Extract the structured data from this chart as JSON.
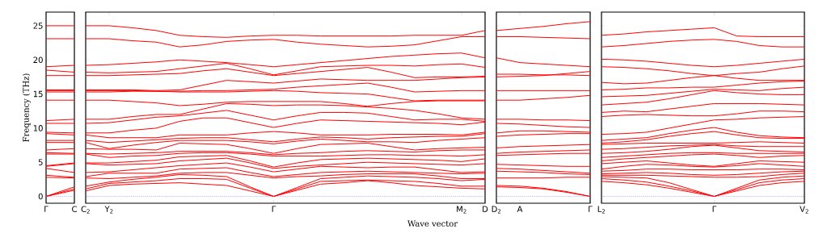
{
  "chart_data": [
    {
      "type": "line",
      "color": "#ff0000",
      "ylabel": "Frequency (THz)",
      "categories": [
        "Γ",
        "C"
      ],
      "ylim": [
        -1,
        27
      ],
      "yticks": [
        0,
        5,
        10,
        15,
        20,
        25
      ],
      "ref_lines": [
        {
          "axis": "y",
          "value": 0,
          "color": "#8080ff",
          "line_style": "dotted"
        }
      ],
      "series": [
        {
          "values": [
            0,
            0.9
          ]
        },
        {
          "values": [
            0,
            1.1
          ]
        },
        {
          "values": [
            0,
            1.4
          ]
        },
        {
          "values": [
            2.8,
            2.7
          ]
        },
        {
          "values": [
            3.1,
            2.8
          ]
        },
        {
          "values": [
            4.1,
            3.5
          ]
        },
        {
          "values": [
            4.4,
            4.8
          ]
        },
        {
          "values": [
            4.5,
            4.9
          ]
        },
        {
          "values": [
            6.2,
            6.2
          ]
        },
        {
          "values": [
            6.4,
            6.3
          ]
        },
        {
          "values": [
            6.8,
            7.0
          ]
        },
        {
          "values": [
            7.9,
            7.9
          ]
        },
        {
          "values": [
            8.2,
            8.2
          ]
        },
        {
          "values": [
            9.2,
            9.0
          ]
        },
        {
          "values": [
            9.4,
            9.3
          ]
        },
        {
          "values": [
            10.7,
            10.7
          ]
        },
        {
          "values": [
            11.1,
            11.3
          ]
        },
        {
          "values": [
            14.1,
            14.1
          ]
        },
        {
          "values": [
            15.3,
            15.3
          ]
        },
        {
          "values": [
            15.5,
            15.5
          ]
        },
        {
          "values": [
            15.6,
            15.6
          ]
        },
        {
          "values": [
            17.7,
            17.7
          ]
        },
        {
          "values": [
            18.5,
            18.2
          ]
        },
        {
          "values": [
            19.0,
            19.2
          ]
        },
        {
          "values": [
            23.1,
            23.1
          ]
        },
        {
          "values": [
            25.0,
            25.0
          ]
        }
      ]
    },
    {
      "type": "line",
      "color": "#ff0000",
      "xlabel": "Wave vector",
      "tick_labels": "x",
      "categories": [
        "C$_{2}$",
        "Y$_{2}$",
        null,
        null,
        null,
        null,
        null,
        null,
        "Γ",
        null,
        null,
        null,
        null,
        null,
        null,
        null,
        "M$_{2}$",
        "D"
      ],
      "ylim": [
        -1,
        27
      ],
      "yticks": [
        0,
        5,
        10,
        15,
        20,
        25
      ],
      "ref_lines": [
        {
          "axis": "y",
          "value": 0,
          "color": "#8080ff",
          "line_style": "dotted"
        }
      ],
      "series": [
        {
          "values": [
            0.8,
            1.6,
            1.8,
            1.9,
            2.0,
            1.8,
            1.6,
            0.8,
            0,
            0.9,
            1.8,
            2.0,
            2.3,
            2.0,
            1.6,
            1.4,
            1.2,
            1.1
          ]
        },
        {
          "values": [
            1.1,
            1.9,
            2.1,
            2.3,
            2.6,
            2.6,
            2.5,
            1.2,
            0,
            1.1,
            2.2,
            2.3,
            2.4,
            2.3,
            2.2,
            1.9,
            1.5,
            1.5
          ]
        },
        {
          "values": [
            1.5,
            2.1,
            2.5,
            2.8,
            3.2,
            3.1,
            2.9,
            1.4,
            0,
            1.3,
            2.6,
            2.8,
            3.0,
            2.9,
            2.8,
            2.6,
            2.3,
            2.5
          ]
        },
        {
          "values": [
            2.7,
            2.6,
            2.8,
            3.0,
            3.4,
            3.5,
            3.5,
            3.1,
            2.7,
            2.9,
            3.0,
            3.2,
            3.3,
            3.3,
            3.3,
            3.0,
            2.6,
            2.6
          ]
        },
        {
          "values": [
            2.9,
            3.4,
            3.4,
            3.4,
            4.0,
            4.1,
            4.2,
            3.5,
            2.9,
            3.2,
            3.5,
            3.6,
            3.7,
            3.6,
            3.5,
            3.4,
            3.3,
            3.4
          ]
        },
        {
          "values": [
            3.5,
            3.6,
            3.9,
            4.2,
            4.5,
            4.7,
            4.9,
            4.3,
            3.6,
            4.0,
            4.4,
            4.3,
            4.2,
            4.3,
            4.3,
            3.9,
            3.5,
            3.6
          ]
        },
        {
          "values": [
            4.8,
            4.6,
            4.7,
            4.8,
            5.2,
            5.4,
            5.6,
            4.9,
            4.1,
            4.4,
            4.6,
            4.8,
            5.0,
            4.9,
            4.8,
            4.7,
            4.6,
            4.8
          ]
        },
        {
          "values": [
            4.9,
            4.9,
            5.1,
            5.3,
            5.8,
            5.9,
            6.0,
            5.2,
            4.3,
            4.9,
            5.4,
            5.5,
            5.6,
            5.5,
            5.4,
            5.3,
            5.1,
            5.5
          ]
        },
        {
          "values": [
            6.2,
            5.7,
            5.9,
            6.0,
            6.3,
            6.4,
            6.4,
            6.2,
            5.9,
            5.9,
            5.9,
            6.0,
            6.1,
            6.1,
            6.0,
            6.0,
            5.9,
            6.1
          ]
        },
        {
          "values": [
            6.3,
            6.2,
            6.3,
            6.4,
            6.6,
            6.6,
            6.6,
            6.4,
            6.1,
            6.3,
            6.4,
            6.6,
            6.7,
            6.6,
            6.5,
            6.7,
            6.8,
            6.8
          ]
        },
        {
          "values": [
            7.0,
            6.9,
            6.9,
            6.8,
            7.8,
            7.7,
            7.6,
            7.0,
            6.3,
            7.0,
            7.6,
            7.7,
            7.8,
            7.3,
            6.8,
            7.0,
            7.1,
            7.2
          ]
        },
        {
          "values": [
            7.9,
            7.0,
            7.5,
            7.9,
            8.2,
            8.2,
            8.2,
            8.0,
            7.7,
            8.1,
            8.4,
            8.2,
            8.0,
            8.0,
            7.9,
            8.2,
            8.4,
            8.6
          ]
        },
        {
          "values": [
            8.2,
            7.9,
            8.1,
            8.3,
            8.5,
            8.6,
            8.6,
            8.3,
            8.0,
            8.4,
            8.7,
            8.6,
            8.4,
            8.6,
            8.7,
            8.8,
            8.8,
            9.2
          ]
        },
        {
          "values": [
            9.0,
            8.6,
            8.6,
            8.6,
            9.0,
            9.0,
            9.0,
            9.3,
            9.5,
            9.3,
            9.0,
            9.0,
            9.0,
            9.1,
            9.1,
            9.1,
            9.0,
            9.4
          ]
        },
        {
          "values": [
            9.3,
            9.3,
            9.7,
            10.0,
            11.0,
            11.5,
            11.5,
            10.8,
            10.1,
            10.7,
            11.2,
            11.1,
            11.0,
            10.9,
            10.8,
            10.7,
            10.5,
            10.9
          ]
        },
        {
          "values": [
            10.7,
            10.8,
            11.2,
            11.6,
            11.8,
            12.2,
            12.6,
            11.9,
            11.2,
            11.8,
            12.3,
            12.3,
            12.2,
            11.7,
            11.2,
            11.3,
            11.3,
            11.0
          ]
        },
        {
          "values": [
            11.3,
            11.3,
            11.7,
            12.0,
            12.0,
            12.8,
            13.6,
            13.5,
            13.3,
            13.4,
            13.4,
            13.3,
            13.1,
            12.9,
            12.6,
            12.1,
            11.5,
            11.3
          ]
        },
        {
          "values": [
            14.1,
            14.1,
            13.9,
            13.7,
            13.3,
            13.5,
            13.8,
            13.9,
            13.9,
            13.9,
            13.9,
            13.6,
            13.2,
            13.6,
            13.9,
            14.0,
            14.0,
            14.0
          ]
        },
        {
          "values": [
            15.3,
            15.3,
            15.4,
            15.4,
            15.3,
            15.3,
            15.3,
            15.4,
            15.5,
            15.4,
            15.2,
            15.1,
            15.0,
            14.5,
            14.0,
            14.1,
            14.1,
            14.1
          ]
        },
        {
          "values": [
            15.5,
            15.5,
            15.5,
            15.4,
            15.4,
            15.5,
            15.5,
            15.6,
            15.7,
            16.0,
            16.2,
            16.4,
            16.6,
            16.0,
            15.3,
            15.4,
            15.5,
            15.5
          ]
        },
        {
          "values": [
            15.6,
            15.6,
            15.6,
            15.5,
            15.6,
            16.3,
            17.0,
            16.8,
            16.6,
            16.9,
            17.2,
            17.1,
            17.0,
            17.0,
            17.0,
            17.2,
            17.4,
            17.5
          ]
        },
        {
          "values": [
            17.7,
            17.7,
            17.8,
            17.9,
            18.0,
            18.4,
            18.7,
            18.2,
            17.7,
            18.0,
            18.3,
            18.6,
            18.9,
            18.2,
            17.4,
            17.5,
            17.5,
            17.6
          ]
        },
        {
          "values": [
            18.2,
            18.1,
            18.2,
            18.3,
            18.7,
            19.1,
            19.5,
            18.7,
            17.8,
            18.4,
            19.0,
            19.1,
            19.2,
            19.2,
            19.1,
            19.3,
            19.4,
            18.9
          ]
        },
        {
          "values": [
            19.2,
            19.3,
            19.5,
            19.7,
            20.0,
            19.8,
            19.6,
            19.3,
            19.0,
            19.3,
            19.6,
            19.9,
            20.2,
            20.5,
            20.7,
            20.9,
            21.0,
            20.3
          ]
        },
        {
          "values": [
            23.1,
            23.1,
            22.8,
            22.6,
            21.9,
            22.2,
            22.7,
            22.9,
            23.0,
            22.6,
            22.3,
            22.1,
            21.9,
            22.0,
            22.2,
            22.8,
            23.4,
            23.4
          ]
        },
        {
          "values": [
            25.0,
            25.0,
            24.7,
            24.3,
            23.6,
            23.4,
            23.3,
            23.5,
            23.6,
            23.6,
            23.5,
            23.5,
            23.5,
            23.5,
            23.6,
            23.6,
            23.6,
            24.3
          ]
        }
      ]
    },
    {
      "type": "line",
      "color": "#ff0000",
      "tick_labels": "x",
      "categories": [
        "D$_{2}$",
        "A",
        null,
        null,
        "Γ"
      ],
      "ylim": [
        -1,
        27
      ],
      "yticks": [
        0,
        5,
        10,
        15,
        20,
        25
      ],
      "ref_lines": [
        {
          "axis": "y",
          "value": 0,
          "color": "#8080ff",
          "line_style": "dotted"
        }
      ],
      "series": [
        {
          "values": [
            1.4,
            1.3,
            1.1,
            0.6,
            0
          ]
        },
        {
          "values": [
            1.6,
            1.5,
            1.2,
            0.7,
            0
          ]
        },
        {
          "values": [
            2.7,
            2.7,
            2.7,
            2.8,
            2.8
          ]
        },
        {
          "values": [
            3.7,
            3.6,
            3.5,
            3.3,
            3.2
          ]
        },
        {
          "values": [
            4.1,
            4.0,
            3.8,
            3.6,
            3.4
          ]
        },
        {
          "values": [
            4.7,
            4.6,
            4.5,
            4.4,
            4.4
          ]
        },
        {
          "values": [
            6.0,
            6.1,
            6.2,
            6.3,
            6.3
          ]
        },
        {
          "values": [
            6.3,
            6.5,
            6.6,
            6.7,
            6.8
          ]
        },
        {
          "values": [
            7.1,
            7.3,
            7.4,
            7.5,
            7.6
          ]
        },
        {
          "values": [
            8.8,
            9.0,
            9.1,
            9.2,
            9.2
          ]
        },
        {
          "values": [
            9.3,
            9.6,
            9.6,
            9.5,
            9.4
          ]
        },
        {
          "values": [
            10.7,
            10.6,
            10.4,
            10.2,
            10.1
          ]
        },
        {
          "values": [
            11.3,
            11.3,
            11.2,
            11.2,
            11.1
          ]
        },
        {
          "values": [
            14.1,
            14.1,
            14.3,
            14.5,
            14.8
          ]
        },
        {
          "values": [
            15.5,
            15.5,
            15.5,
            15.5,
            15.5
          ]
        },
        {
          "values": [
            17.5,
            17.6,
            17.7,
            18.0,
            18.3
          ]
        },
        {
          "values": [
            17.9,
            17.9,
            17.8,
            17.8,
            17.7
          ]
        },
        {
          "values": [
            20.3,
            19.6,
            19.4,
            19.2,
            19.0
          ]
        },
        {
          "values": [
            23.4,
            23.4,
            23.3,
            23.2,
            23.1
          ]
        },
        {
          "values": [
            24.3,
            24.6,
            24.9,
            25.3,
            25.6
          ]
        }
      ]
    },
    {
      "type": "line",
      "color": "#ff0000",
      "tick_labels": "x",
      "categories": [
        "L$_{2}$",
        null,
        null,
        null,
        null,
        "Γ",
        null,
        null,
        null,
        "V$_{2}$"
      ],
      "ylim": [
        -1,
        27
      ],
      "yticks": [
        0,
        5,
        10,
        15,
        20,
        25
      ],
      "ref_lines": [
        {
          "axis": "y",
          "value": 0,
          "color": "#8080ff",
          "line_style": "dotted"
        }
      ],
      "series": [
        {
          "values": [
            2.2,
            2.0,
            1.7,
            1.2,
            0.6,
            0,
            0.8,
            1.6,
            2.0,
            2.2
          ]
        },
        {
          "values": [
            2.6,
            2.4,
            2.1,
            1.5,
            0.8,
            0,
            1.0,
            2.0,
            2.4,
            2.6
          ]
        },
        {
          "values": [
            2.9,
            2.8,
            2.7,
            2.0,
            1.0,
            0,
            1.2,
            2.4,
            2.8,
            3.0
          ]
        },
        {
          "values": [
            3.1,
            3.1,
            3.1,
            3.0,
            2.9,
            2.8,
            2.8,
            2.9,
            3.2,
            3.4
          ]
        },
        {
          "values": [
            3.3,
            3.4,
            3.5,
            3.4,
            3.2,
            3.1,
            3.2,
            3.4,
            3.6,
            3.7
          ]
        },
        {
          "values": [
            3.7,
            3.8,
            4.0,
            4.0,
            3.9,
            3.9,
            3.9,
            4.0,
            4.0,
            3.9
          ]
        },
        {
          "values": [
            4.0,
            4.4,
            4.7,
            4.6,
            4.4,
            4.3,
            4.5,
            4.8,
            4.6,
            4.4
          ]
        },
        {
          "values": [
            4.8,
            5.0,
            5.2,
            4.9,
            4.6,
            4.4,
            4.8,
            5.2,
            5.1,
            5.0
          ]
        },
        {
          "values": [
            5.2,
            5.5,
            5.7,
            5.9,
            6.1,
            6.2,
            6.0,
            5.7,
            5.9,
            6.0
          ]
        },
        {
          "values": [
            5.7,
            5.9,
            6.1,
            6.3,
            6.4,
            6.4,
            6.3,
            6.3,
            6.3,
            6.3
          ]
        },
        {
          "values": [
            6.3,
            6.4,
            6.6,
            6.9,
            7.3,
            7.5,
            7.1,
            6.7,
            6.6,
            6.5
          ]
        },
        {
          "values": [
            6.9,
            7.0,
            7.2,
            7.4,
            7.5,
            7.6,
            7.4,
            7.3,
            7.3,
            7.3
          ]
        },
        {
          "values": [
            7.6,
            7.7,
            7.8,
            7.8,
            7.8,
            7.8,
            7.9,
            8.0,
            7.9,
            7.8
          ]
        },
        {
          "values": [
            7.8,
            8.0,
            8.3,
            8.8,
            9.2,
            9.5,
            9.0,
            8.6,
            8.5,
            8.5
          ]
        },
        {
          "values": [
            8.2,
            8.4,
            8.6,
            9.2,
            9.7,
            10.1,
            9.4,
            8.9,
            8.7,
            8.6
          ]
        },
        {
          "values": [
            9.1,
            9.2,
            9.4,
            10.0,
            10.6,
            11.2,
            11.3,
            11.5,
            11.6,
            11.7
          ]
        },
        {
          "values": [
            11.7,
            11.9,
            12.0,
            11.9,
            11.8,
            11.8,
            12.1,
            12.5,
            12.5,
            12.4
          ]
        },
        {
          "values": [
            12.3,
            12.5,
            12.4,
            12.8,
            13.2,
            13.6,
            13.6,
            13.6,
            13.5,
            13.4
          ]
        },
        {
          "values": [
            13.4,
            13.6,
            13.8,
            14.3,
            14.9,
            15.5,
            15.2,
            15.0,
            14.9,
            14.9
          ]
        },
        {
          "values": [
            14.6,
            14.7,
            14.8,
            15.1,
            15.4,
            15.7,
            15.6,
            15.5,
            15.8,
            16.0
          ]
        },
        {
          "values": [
            15.6,
            15.7,
            15.9,
            15.9,
            16.0,
            16.0,
            16.3,
            16.6,
            16.8,
            16.9
          ]
        },
        {
          "values": [
            16.7,
            16.5,
            16.6,
            17.0,
            17.4,
            17.7,
            17.3,
            17.0,
            17.0,
            17.0
          ]
        },
        {
          "values": [
            19.0,
            18.9,
            18.7,
            18.4,
            18.0,
            17.7,
            18.0,
            18.2,
            18.7,
            19.1
          ]
        },
        {
          "values": [
            20.1,
            20.0,
            19.8,
            19.5,
            19.2,
            19.0,
            19.2,
            19.5,
            19.8,
            20.1
          ]
        },
        {
          "values": [
            21.9,
            22.1,
            22.4,
            22.7,
            22.9,
            23.0,
            22.7,
            22.1,
            21.9,
            21.9
          ]
        },
        {
          "values": [
            23.6,
            23.8,
            24.1,
            24.3,
            24.5,
            24.7,
            23.5,
            23.4,
            23.4,
            23.4
          ]
        }
      ]
    }
  ]
}
